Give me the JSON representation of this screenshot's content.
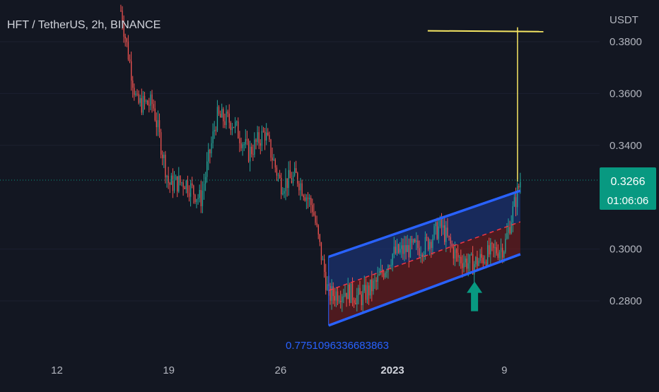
{
  "header": {
    "symbol_line": "HFT / TetherUS, 2h, BINANCE"
  },
  "axis": {
    "currency": "USDT",
    "price_ticks": [
      "0.3800",
      "0.3600",
      "0.3400",
      "0.3000",
      "0.2800"
    ],
    "time_ticks": [
      "12",
      "19",
      "26",
      "2023",
      "9"
    ]
  },
  "price_badge": {
    "price": "0.3266",
    "countdown": "01:06:06"
  },
  "annotation": {
    "channel_label": "0.7751096336683863"
  },
  "colors": {
    "background": "#131722",
    "up_candle": "#26a69a",
    "down_candle": "#ef5350",
    "channel_line": "#2962ff",
    "channel_mid": "#f23645",
    "channel_fill_upper": "#1e3a8a",
    "channel_fill_lower": "#7f1d1d",
    "horizontal_line": "#f5e663",
    "arrow": "#089981",
    "price_badge": "#089981"
  },
  "chart_data": {
    "type": "candlestick",
    "title": "HFT / TetherUS, 2h, BINANCE",
    "ylabel": "USDT",
    "ylim": [
      0.266,
      0.39
    ],
    "x_tick_labels": [
      "12",
      "19",
      "26",
      "2023",
      "9"
    ],
    "last_price": 0.3266,
    "anchors": [
      {
        "date": "Dec 16",
        "price": 0.392
      },
      {
        "date": "Dec 17",
        "price": 0.356
      },
      {
        "date": "Dec 18",
        "price": 0.356
      },
      {
        "date": "Dec 19",
        "price": 0.325
      },
      {
        "date": "Dec 20",
        "price": 0.326
      },
      {
        "date": "Dec 21",
        "price": 0.319
      },
      {
        "date": "Dec 22",
        "price": 0.351
      },
      {
        "date": "Dec 23",
        "price": 0.349
      },
      {
        "date": "Dec 24",
        "price": 0.337
      },
      {
        "date": "Dec 25",
        "price": 0.345
      },
      {
        "date": "Dec 26",
        "price": 0.325
      },
      {
        "date": "Dec 27",
        "price": 0.328
      },
      {
        "date": "Dec 28",
        "price": 0.316
      },
      {
        "date": "Dec 29",
        "price": 0.282
      },
      {
        "date": "Dec 30",
        "price": 0.284
      },
      {
        "date": "Dec 31",
        "price": 0.281
      },
      {
        "date": "Jan 1",
        "price": 0.287
      },
      {
        "date": "Jan 2",
        "price": 0.298
      },
      {
        "date": "Jan 3",
        "price": 0.3
      },
      {
        "date": "Jan 4",
        "price": 0.301
      },
      {
        "date": "Jan 5",
        "price": 0.309
      },
      {
        "date": "Jan 6",
        "price": 0.297
      },
      {
        "date": "Jan 7",
        "price": 0.294
      },
      {
        "date": "Jan 8",
        "price": 0.298
      },
      {
        "date": "Jan 9",
        "price": 0.301
      },
      {
        "date": "Jan 10",
        "price": 0.3266
      }
    ],
    "channel": {
      "upper": [
        {
          "date": "Dec 29",
          "price": 0.297
        },
        {
          "date": "Jan 10",
          "price": 0.3225
        }
      ],
      "middle": [
        {
          "date": "Dec 29",
          "price": 0.284
        },
        {
          "date": "Jan 10",
          "price": 0.3105
        }
      ],
      "lower": [
        {
          "date": "Dec 29",
          "price": 0.2705
        },
        {
          "date": "Jan 10",
          "price": 0.298
        }
      ]
    },
    "horizontal_line": {
      "price": 0.3842,
      "from": "Jan 5",
      "to": "Jan 11"
    },
    "annotation_value": 0.7751096336683863
  }
}
